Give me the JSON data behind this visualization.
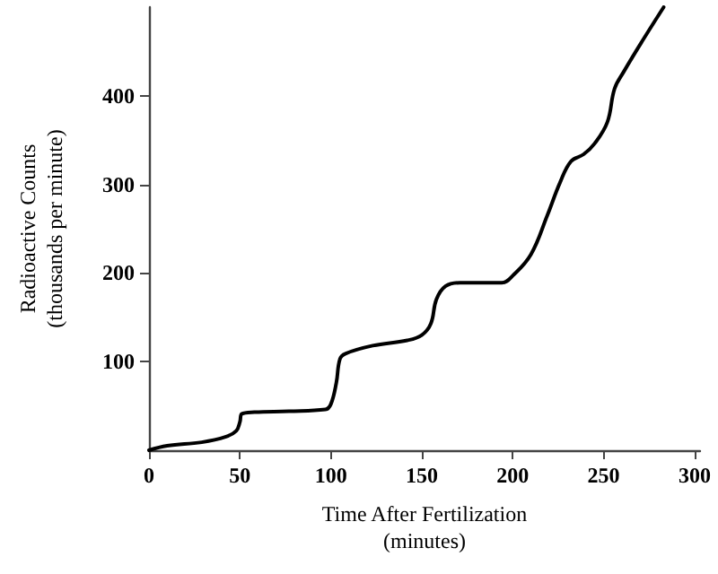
{
  "chart_data": {
    "type": "line",
    "xlabel": "Time After Fertilization\n(minutes)",
    "ylabel": "Radioactive Counts\n(thousands per minute)",
    "x": [
      0,
      10,
      29,
      42,
      48,
      50,
      51,
      58,
      77,
      97,
      100,
      103,
      105,
      108,
      123,
      142,
      150,
      155,
      158,
      163,
      171,
      194,
      200,
      210,
      219,
      226,
      232,
      239,
      245,
      252,
      256,
      261,
      271,
      283
    ],
    "series": [
      {
        "color": "#000000",
        "values": [
          0,
          5,
          9,
          15,
          22,
          32,
          41,
          43,
          44,
          46,
          52,
          76,
          103,
          109,
          118,
          124,
          130,
          143,
          170,
          185,
          189,
          189,
          197,
          221,
          265,
          302,
          326,
          334,
          346,
          370,
          408,
          427,
          461,
          500
        ]
      }
    ],
    "xlim": [
      0,
      303
    ],
    "xticks": [
      0,
      50,
      100,
      150,
      200,
      250,
      300
    ],
    "ylim": [
      0,
      500
    ],
    "yticks": [
      100,
      200,
      300,
      400
    ],
    "grid": false,
    "marker": "none",
    "line_style": "solid"
  }
}
